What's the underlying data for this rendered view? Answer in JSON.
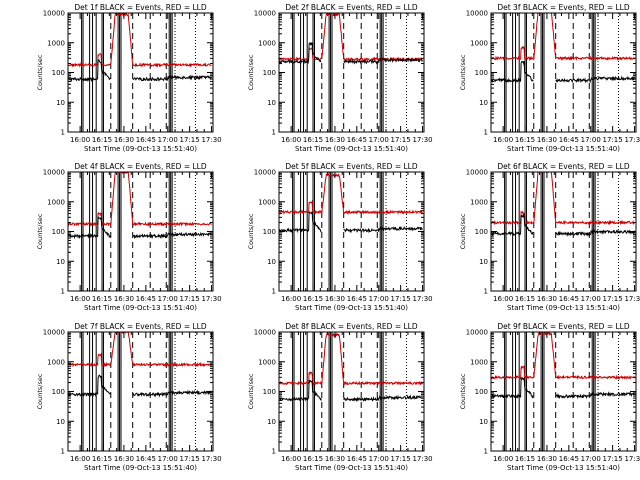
{
  "chart_data": {
    "type": "line",
    "panels": [
      {
        "title": "Det 1f BLACK = Events, RED = LLD",
        "event_base": 60,
        "lld_base": 180,
        "peak": 9000
      },
      {
        "title": "Det 2f BLACK = Events, RED = LLD",
        "event_base": 230,
        "lld_base": 280,
        "peak": 9000
      },
      {
        "title": "Det 3f BLACK = Events, RED = LLD",
        "event_base": 55,
        "lld_base": 300,
        "peak": 12000
      },
      {
        "title": "Det 4f BLACK = Events, RED = LLD",
        "event_base": 70,
        "lld_base": 180,
        "peak": 10000
      },
      {
        "title": "Det 5f BLACK = Events, RED = LLD",
        "event_base": 110,
        "lld_base": 450,
        "peak": 8000
      },
      {
        "title": "Det 6f BLACK = Events, RED = LLD",
        "event_base": 85,
        "lld_base": 200,
        "peak": 11000
      },
      {
        "title": "Det 7f BLACK = Events, RED = LLD",
        "event_base": 80,
        "lld_base": 800,
        "peak": 10000
      },
      {
        "title": "Det 8f BLACK = Events, RED = LLD",
        "event_base": 55,
        "lld_base": 190,
        "peak": 8000
      },
      {
        "title": "Det 9f BLACK = Events, RED = LLD",
        "event_base": 70,
        "lld_base": 300,
        "peak": 9000
      }
    ],
    "series_names": [
      "Events",
      "LLD"
    ],
    "series_colors": [
      "#000000",
      "#cc0000"
    ],
    "ylabel": "Counts/sec",
    "xlabel": "Start Time (09-Oct-13 15:51:40)",
    "x_tick_labels": [
      "16:00",
      "16:15",
      "16:30",
      "16:45",
      "17:00",
      "17:15",
      "17:30"
    ],
    "x_ticks_minutes": [
      0,
      15,
      30,
      45,
      60,
      75,
      90
    ],
    "y_tick_labels": [
      "1",
      "10",
      "100",
      "1000",
      "10000"
    ],
    "y_scale": "log",
    "ylim": [
      1,
      10000
    ],
    "xlim_minutes": [
      -8.3,
      91
    ],
    "solid_markers_minutes": [
      1,
      2,
      6.5,
      8.5,
      11,
      15,
      16,
      26,
      27,
      28,
      61,
      62,
      63
    ],
    "dashed_markers_minutes": [
      21,
      36,
      48,
      59
    ],
    "dotted_markers_minutes": [
      65,
      79
    ]
  }
}
